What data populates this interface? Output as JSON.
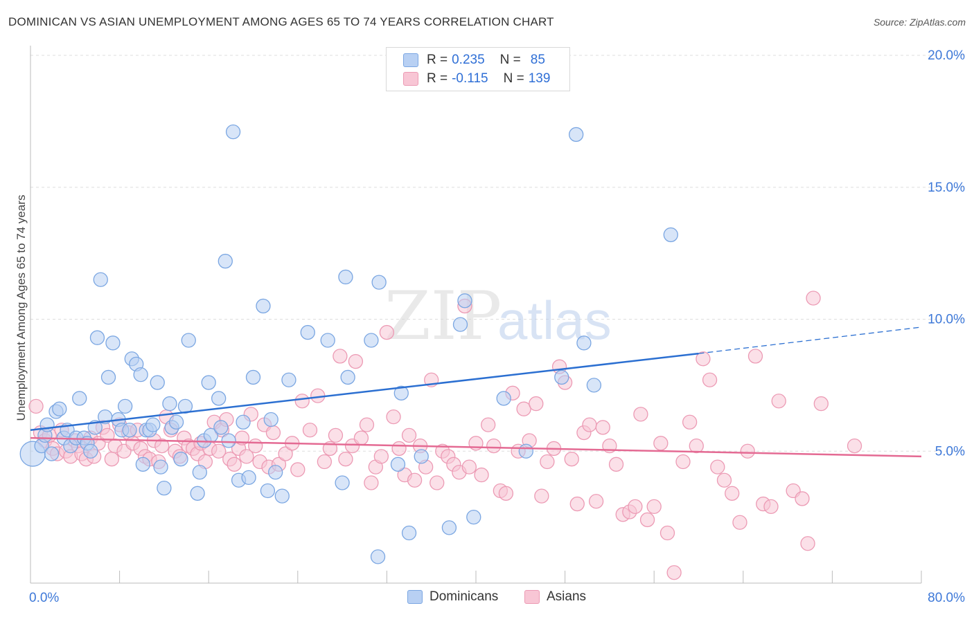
{
  "title": "DOMINICAN VS ASIAN UNEMPLOYMENT AMONG AGES 65 TO 74 YEARS CORRELATION CHART",
  "source": "Source: ZipAtlas.com",
  "watermark": {
    "zip": "ZIP",
    "atlas": "atlas"
  },
  "legend": {
    "r_label": "R =",
    "n_label": "N =",
    "rows": [
      {
        "series": "Dominicans",
        "r": "0.235",
        "n": "85"
      },
      {
        "series": "Asians",
        "r": "-0.115",
        "n": "139"
      }
    ]
  },
  "colors": {
    "dominicans_fill": "#b8d0f3",
    "dominicans_stroke": "#7aa6e2",
    "dominicans_line": "#2b6fd1",
    "asians_fill": "#f8c6d5",
    "asians_stroke": "#ec9ab4",
    "asians_line": "#e46a93",
    "axis_label": "#3d78d8",
    "grid": "#dddddd"
  },
  "chart_data": {
    "type": "scatter",
    "title": "DOMINICAN VS ASIAN UNEMPLOYMENT AMONG AGES 65 TO 74 YEARS CORRELATION CHART",
    "xlabel": "",
    "ylabel": "Unemployment Among Ages 65 to 74 years",
    "xlim": [
      0,
      80
    ],
    "ylim": [
      0,
      20
    ],
    "x_tick_labels": [
      "0.0%",
      "80.0%"
    ],
    "y_ticks": [
      5,
      10,
      15,
      20
    ],
    "y_tick_labels": [
      "5.0%",
      "10.0%",
      "15.0%",
      "20.0%"
    ],
    "grid": true,
    "legend_placement": "top-center",
    "series": [
      {
        "name": "Dominicans",
        "r": 0.235,
        "n": 85,
        "trend": {
          "x0": 0,
          "y0": 5.8,
          "x1": 60,
          "y1": 8.7,
          "dashed_to_x": 80,
          "dashed_to_y": 9.7
        },
        "points": [
          [
            0.2,
            4.9
          ],
          [
            1.0,
            5.2
          ],
          [
            1.3,
            5.6
          ],
          [
            1.5,
            6.0
          ],
          [
            1.9,
            4.9
          ],
          [
            2.3,
            6.5
          ],
          [
            2.6,
            6.6
          ],
          [
            3.0,
            5.5
          ],
          [
            3.3,
            5.8
          ],
          [
            3.6,
            5.2
          ],
          [
            4.1,
            5.5
          ],
          [
            4.4,
            7.0
          ],
          [
            4.8,
            5.5
          ],
          [
            5.1,
            5.3
          ],
          [
            5.4,
            5.0
          ],
          [
            5.8,
            5.9
          ],
          [
            6.0,
            9.3
          ],
          [
            6.3,
            11.5
          ],
          [
            6.7,
            6.3
          ],
          [
            7.0,
            7.8
          ],
          [
            7.4,
            9.1
          ],
          [
            7.9,
            6.2
          ],
          [
            8.2,
            5.8
          ],
          [
            8.5,
            6.7
          ],
          [
            8.9,
            5.8
          ],
          [
            9.1,
            8.5
          ],
          [
            9.5,
            8.3
          ],
          [
            9.9,
            7.9
          ],
          [
            10.1,
            4.5
          ],
          [
            10.4,
            5.8
          ],
          [
            10.7,
            5.8
          ],
          [
            11.0,
            6.0
          ],
          [
            11.4,
            7.6
          ],
          [
            11.7,
            4.4
          ],
          [
            12.0,
            3.6
          ],
          [
            12.5,
            6.8
          ],
          [
            12.7,
            5.9
          ],
          [
            13.1,
            6.1
          ],
          [
            13.5,
            4.7
          ],
          [
            13.9,
            6.7
          ],
          [
            14.2,
            9.2
          ],
          [
            15.0,
            3.4
          ],
          [
            15.2,
            4.2
          ],
          [
            15.6,
            5.4
          ],
          [
            16.0,
            7.6
          ],
          [
            16.2,
            5.6
          ],
          [
            16.9,
            7.0
          ],
          [
            17.1,
            5.9
          ],
          [
            17.5,
            12.2
          ],
          [
            17.8,
            5.4
          ],
          [
            18.2,
            17.1
          ],
          [
            18.7,
            3.9
          ],
          [
            19.1,
            6.1
          ],
          [
            19.6,
            4.0
          ],
          [
            20.0,
            7.8
          ],
          [
            20.9,
            10.5
          ],
          [
            21.3,
            3.5
          ],
          [
            21.6,
            6.2
          ],
          [
            22.0,
            4.2
          ],
          [
            22.6,
            3.3
          ],
          [
            23.2,
            7.7
          ],
          [
            24.9,
            9.5
          ],
          [
            26.7,
            9.2
          ],
          [
            28.0,
            3.8
          ],
          [
            28.3,
            11.6
          ],
          [
            28.5,
            7.8
          ],
          [
            30.6,
            9.2
          ],
          [
            31.3,
            11.4
          ],
          [
            33.0,
            4.5
          ],
          [
            33.3,
            7.2
          ],
          [
            34.0,
            1.9
          ],
          [
            35.1,
            4.8
          ],
          [
            37.6,
            2.1
          ],
          [
            38.6,
            9.8
          ],
          [
            39.0,
            10.7
          ],
          [
            39.8,
            2.5
          ],
          [
            42.5,
            7.0
          ],
          [
            44.5,
            5.0
          ],
          [
            47.7,
            7.8
          ],
          [
            49.0,
            17.0
          ],
          [
            49.7,
            9.1
          ],
          [
            50.6,
            7.5
          ],
          [
            57.5,
            13.2
          ],
          [
            31.2,
            1.0
          ]
        ]
      },
      {
        "name": "Asians",
        "r": -0.115,
        "n": 139,
        "trend": {
          "x0": 0,
          "y0": 5.5,
          "x1": 80,
          "y1": 4.8
        },
        "points": [
          [
            0.5,
            6.7
          ],
          [
            0.9,
            5.7
          ],
          [
            1.3,
            5.4
          ],
          [
            1.7,
            5.6
          ],
          [
            2.0,
            5.1
          ],
          [
            2.4,
            4.9
          ],
          [
            2.8,
            5.8
          ],
          [
            3.2,
            5.0
          ],
          [
            3.6,
            4.8
          ],
          [
            4.0,
            5.4
          ],
          [
            4.3,
            5.2
          ],
          [
            4.6,
            4.9
          ],
          [
            5.0,
            4.7
          ],
          [
            5.4,
            5.5
          ],
          [
            5.7,
            4.8
          ],
          [
            6.1,
            5.3
          ],
          [
            6.5,
            5.9
          ],
          [
            6.9,
            5.6
          ],
          [
            7.3,
            4.7
          ],
          [
            7.6,
            5.2
          ],
          [
            8.0,
            6.0
          ],
          [
            8.4,
            5.0
          ],
          [
            8.8,
            5.7
          ],
          [
            9.2,
            5.3
          ],
          [
            9.6,
            5.8
          ],
          [
            9.9,
            5.1
          ],
          [
            10.3,
            4.8
          ],
          [
            10.7,
            4.7
          ],
          [
            11.1,
            5.4
          ],
          [
            11.5,
            4.6
          ],
          [
            11.8,
            5.2
          ],
          [
            12.2,
            6.3
          ],
          [
            12.6,
            5.8
          ],
          [
            13.0,
            5.0
          ],
          [
            13.4,
            4.8
          ],
          [
            13.8,
            5.5
          ],
          [
            14.2,
            5.2
          ],
          [
            14.6,
            5.1
          ],
          [
            15.0,
            4.9
          ],
          [
            15.3,
            5.3
          ],
          [
            15.7,
            4.6
          ],
          [
            16.1,
            5.1
          ],
          [
            16.5,
            6.1
          ],
          [
            16.9,
            5.0
          ],
          [
            17.2,
            5.8
          ],
          [
            17.6,
            6.2
          ],
          [
            17.9,
            4.7
          ],
          [
            18.3,
            4.5
          ],
          [
            18.7,
            5.1
          ],
          [
            19.0,
            5.5
          ],
          [
            19.4,
            4.8
          ],
          [
            19.8,
            6.4
          ],
          [
            20.2,
            5.2
          ],
          [
            20.6,
            4.6
          ],
          [
            21.0,
            6.0
          ],
          [
            21.4,
            4.4
          ],
          [
            21.8,
            5.7
          ],
          [
            22.3,
            4.5
          ],
          [
            22.9,
            4.9
          ],
          [
            23.5,
            5.3
          ],
          [
            24.0,
            4.3
          ],
          [
            24.4,
            6.9
          ],
          [
            25.1,
            5.8
          ],
          [
            25.8,
            7.1
          ],
          [
            26.4,
            4.6
          ],
          [
            26.9,
            5.1
          ],
          [
            27.4,
            5.6
          ],
          [
            27.8,
            8.6
          ],
          [
            28.3,
            4.7
          ],
          [
            28.9,
            5.2
          ],
          [
            29.2,
            8.4
          ],
          [
            29.7,
            5.5
          ],
          [
            30.2,
            6.0
          ],
          [
            30.6,
            3.8
          ],
          [
            31.0,
            4.4
          ],
          [
            31.5,
            4.8
          ],
          [
            32.0,
            9.5
          ],
          [
            32.6,
            6.3
          ],
          [
            33.1,
            5.1
          ],
          [
            33.6,
            4.1
          ],
          [
            34.0,
            5.6
          ],
          [
            34.5,
            3.9
          ],
          [
            35.0,
            5.2
          ],
          [
            35.5,
            4.4
          ],
          [
            36.0,
            7.7
          ],
          [
            36.5,
            3.8
          ],
          [
            37.0,
            5.0
          ],
          [
            37.5,
            4.8
          ],
          [
            38.0,
            4.5
          ],
          [
            38.5,
            4.2
          ],
          [
            39.0,
            10.5
          ],
          [
            39.4,
            4.4
          ],
          [
            40.0,
            5.3
          ],
          [
            40.5,
            4.1
          ],
          [
            41.1,
            6.0
          ],
          [
            41.6,
            5.2
          ],
          [
            42.2,
            3.5
          ],
          [
            42.7,
            3.4
          ],
          [
            43.3,
            7.2
          ],
          [
            43.8,
            5.0
          ],
          [
            44.3,
            6.6
          ],
          [
            44.8,
            5.4
          ],
          [
            45.4,
            6.8
          ],
          [
            45.9,
            3.3
          ],
          [
            46.4,
            4.6
          ],
          [
            47.0,
            5.1
          ],
          [
            47.5,
            8.2
          ],
          [
            48.0,
            7.6
          ],
          [
            48.6,
            4.7
          ],
          [
            49.1,
            3.0
          ],
          [
            49.7,
            5.7
          ],
          [
            50.2,
            6.0
          ],
          [
            50.8,
            3.1
          ],
          [
            51.4,
            5.9
          ],
          [
            52.0,
            5.2
          ],
          [
            52.6,
            4.5
          ],
          [
            53.2,
            2.6
          ],
          [
            53.8,
            2.7
          ],
          [
            54.3,
            2.9
          ],
          [
            54.8,
            6.4
          ],
          [
            55.4,
            2.4
          ],
          [
            56.0,
            2.9
          ],
          [
            56.6,
            5.3
          ],
          [
            57.2,
            1.9
          ],
          [
            57.8,
            0.4
          ],
          [
            58.6,
            4.6
          ],
          [
            59.2,
            6.1
          ],
          [
            59.8,
            5.2
          ],
          [
            60.4,
            8.5
          ],
          [
            61.0,
            7.7
          ],
          [
            61.7,
            4.4
          ],
          [
            62.3,
            3.9
          ],
          [
            63.0,
            3.4
          ],
          [
            63.7,
            2.3
          ],
          [
            64.4,
            5.0
          ],
          [
            65.1,
            8.6
          ],
          [
            65.8,
            3.0
          ],
          [
            66.5,
            2.9
          ],
          [
            67.2,
            6.9
          ],
          [
            68.5,
            3.5
          ],
          [
            69.3,
            3.2
          ],
          [
            69.8,
            1.5
          ],
          [
            70.3,
            10.8
          ],
          [
            71.0,
            6.8
          ],
          [
            74.0,
            5.2
          ]
        ]
      }
    ]
  }
}
